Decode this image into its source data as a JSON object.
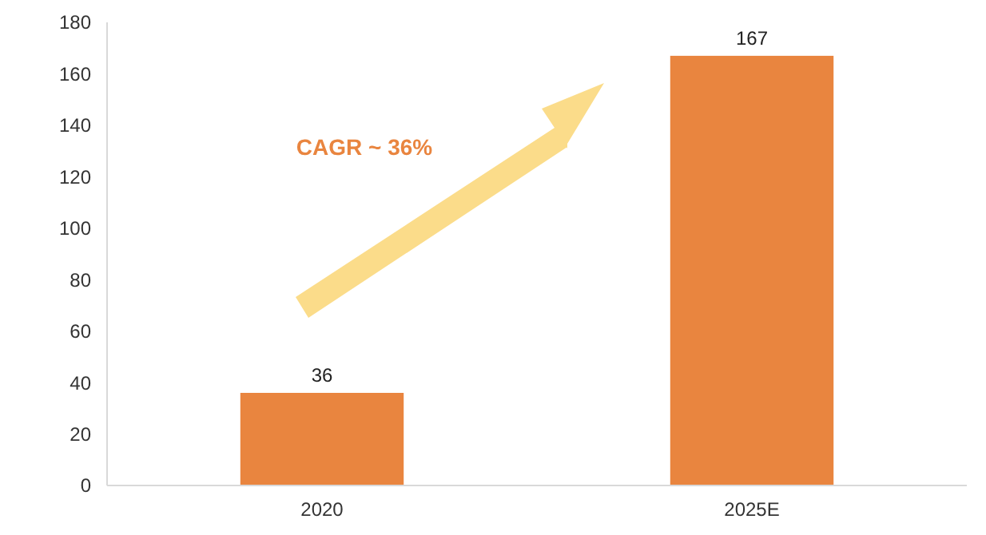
{
  "chart_data": {
    "type": "bar",
    "categories": [
      "2020",
      "2025E"
    ],
    "values": [
      36,
      167
    ],
    "color": "#e9853f",
    "ylim": [
      0,
      180
    ],
    "yticks": [
      0,
      20,
      40,
      60,
      80,
      100,
      120,
      140,
      160,
      180
    ],
    "grid": false,
    "data_labels": true,
    "annotations": [
      "CAGR ~ 36%"
    ]
  }
}
